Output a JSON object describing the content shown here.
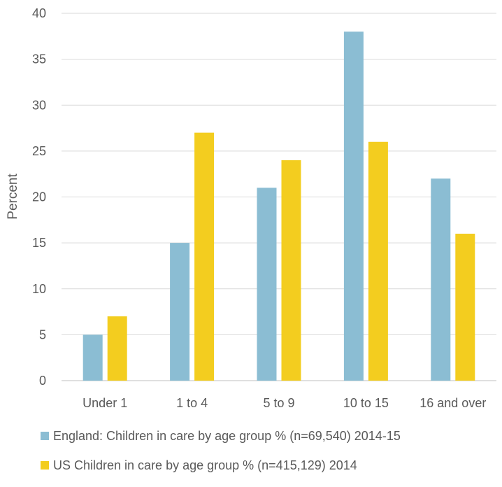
{
  "chart_data": {
    "type": "bar",
    "title": "",
    "xlabel": "",
    "ylabel": "Percent",
    "ylim": [
      0,
      40
    ],
    "yticks": [
      0,
      5,
      10,
      15,
      20,
      25,
      30,
      35,
      40
    ],
    "grid": true,
    "legend_position": "bottom",
    "categories": [
      "Under 1",
      "1 to 4",
      "5 to 9",
      "10 to 15",
      "16 and over"
    ],
    "series": [
      {
        "name": "England: Children in care by age group % (n=69,540) 2014-15",
        "color": "#8bbdd3",
        "values": [
          5,
          15,
          21,
          38,
          22
        ]
      },
      {
        "name": "US Children in care by age group % (n=415,129) 2014",
        "color": "#f3cd1f",
        "values": [
          7,
          27,
          24,
          26,
          16
        ]
      }
    ]
  }
}
